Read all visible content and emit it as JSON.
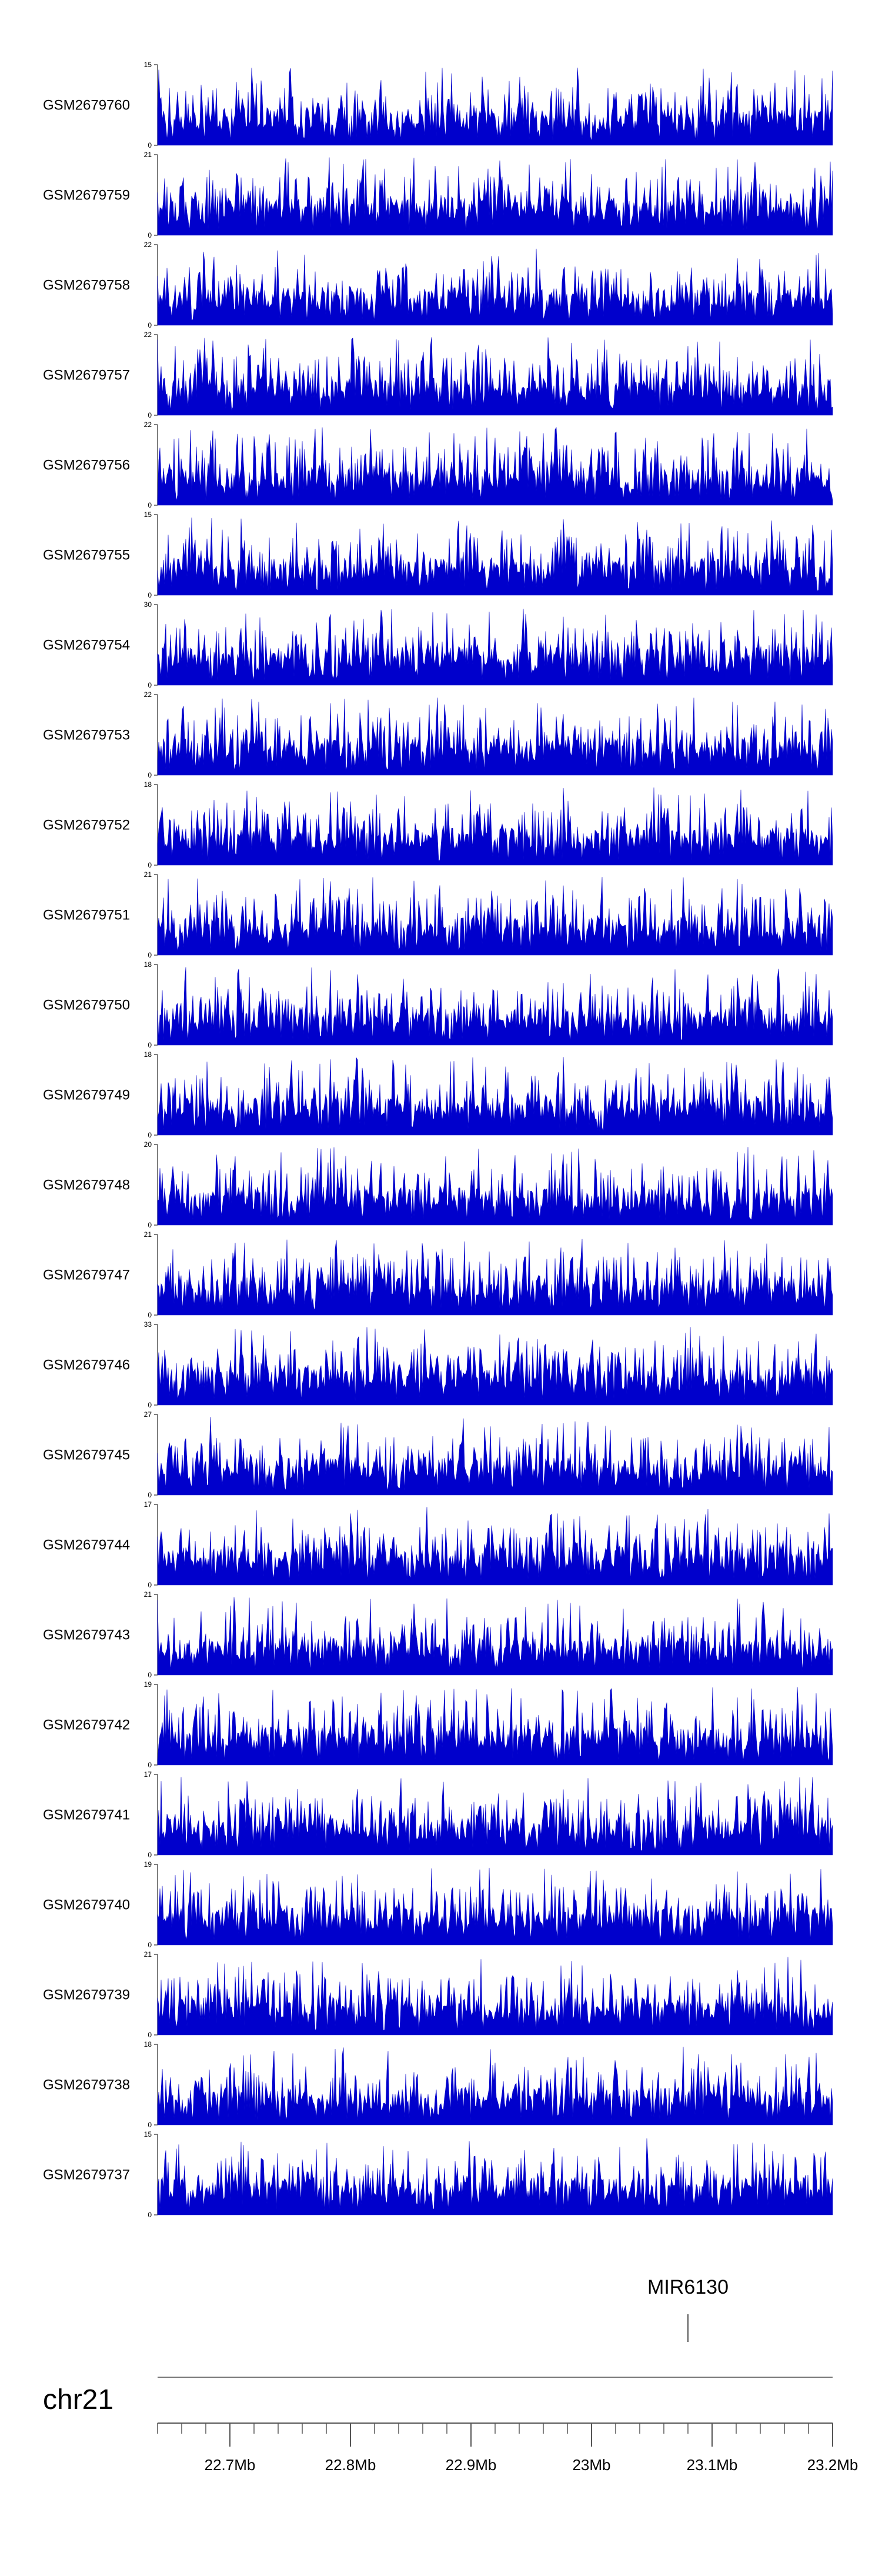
{
  "chart_data": {
    "type": "area",
    "signal_color": "#0000cc",
    "axis_color": "#555555",
    "tracks": [
      {
        "name": "GSM2679760",
        "ymax": 15
      },
      {
        "name": "GSM2679759",
        "ymax": 21
      },
      {
        "name": "GSM2679758",
        "ymax": 22
      },
      {
        "name": "GSM2679757",
        "ymax": 22
      },
      {
        "name": "GSM2679756",
        "ymax": 22
      },
      {
        "name": "GSM2679755",
        "ymax": 15
      },
      {
        "name": "GSM2679754",
        "ymax": 30
      },
      {
        "name": "GSM2679753",
        "ymax": 22
      },
      {
        "name": "GSM2679752",
        "ymax": 18
      },
      {
        "name": "GSM2679751",
        "ymax": 21
      },
      {
        "name": "GSM2679750",
        "ymax": 18
      },
      {
        "name": "GSM2679749",
        "ymax": 18
      },
      {
        "name": "GSM2679748",
        "ymax": 20
      },
      {
        "name": "GSM2679747",
        "ymax": 21
      },
      {
        "name": "GSM2679746",
        "ymax": 33
      },
      {
        "name": "GSM2679745",
        "ymax": 27
      },
      {
        "name": "GSM2679744",
        "ymax": 17
      },
      {
        "name": "GSM2679743",
        "ymax": 21
      },
      {
        "name": "GSM2679742",
        "ymax": 19
      },
      {
        "name": "GSM2679741",
        "ymax": 17
      },
      {
        "name": "GSM2679740",
        "ymax": 19
      },
      {
        "name": "GSM2679739",
        "ymax": 21
      },
      {
        "name": "GSM2679738",
        "ymax": 18
      },
      {
        "name": "GSM2679737",
        "ymax": 15
      }
    ],
    "y_min_label": "0",
    "gene": {
      "name": "MIR6130",
      "position": 23.08
    },
    "chromosome": "chr21",
    "xrange": [
      22.64,
      23.2
    ],
    "x_ticks": [
      {
        "value": 22.7,
        "label": "22.7Mb"
      },
      {
        "value": 22.8,
        "label": "22.8Mb"
      },
      {
        "value": 22.9,
        "label": "22.9Mb"
      },
      {
        "value": 23.0,
        "label": "23Mb"
      },
      {
        "value": 23.1,
        "label": "23.1Mb"
      },
      {
        "value": 23.2,
        "label": "23.2Mb"
      }
    ],
    "minor_tick_step": 0.02
  }
}
